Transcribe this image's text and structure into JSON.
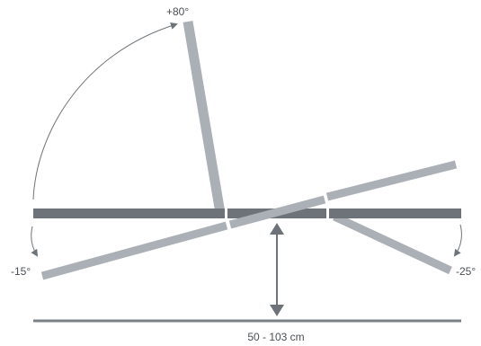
{
  "labels": {
    "tilt_up": "+80°",
    "tilt_left_down": "-15°",
    "tilt_right_down": "-25°",
    "height_range": "50 - 103 cm"
  },
  "colors": {
    "platform": "#6d7378",
    "positions": "#aab0b5",
    "arrows": "#6d7378",
    "curves": "#6d7378",
    "floor": "#7b8186",
    "text": "#4a4f54",
    "background": "#ffffff"
  },
  "icons": {
    "height_arrow": "double-headed-arrow-icon",
    "rotation_arrows": "curved-arrow-icon"
  }
}
